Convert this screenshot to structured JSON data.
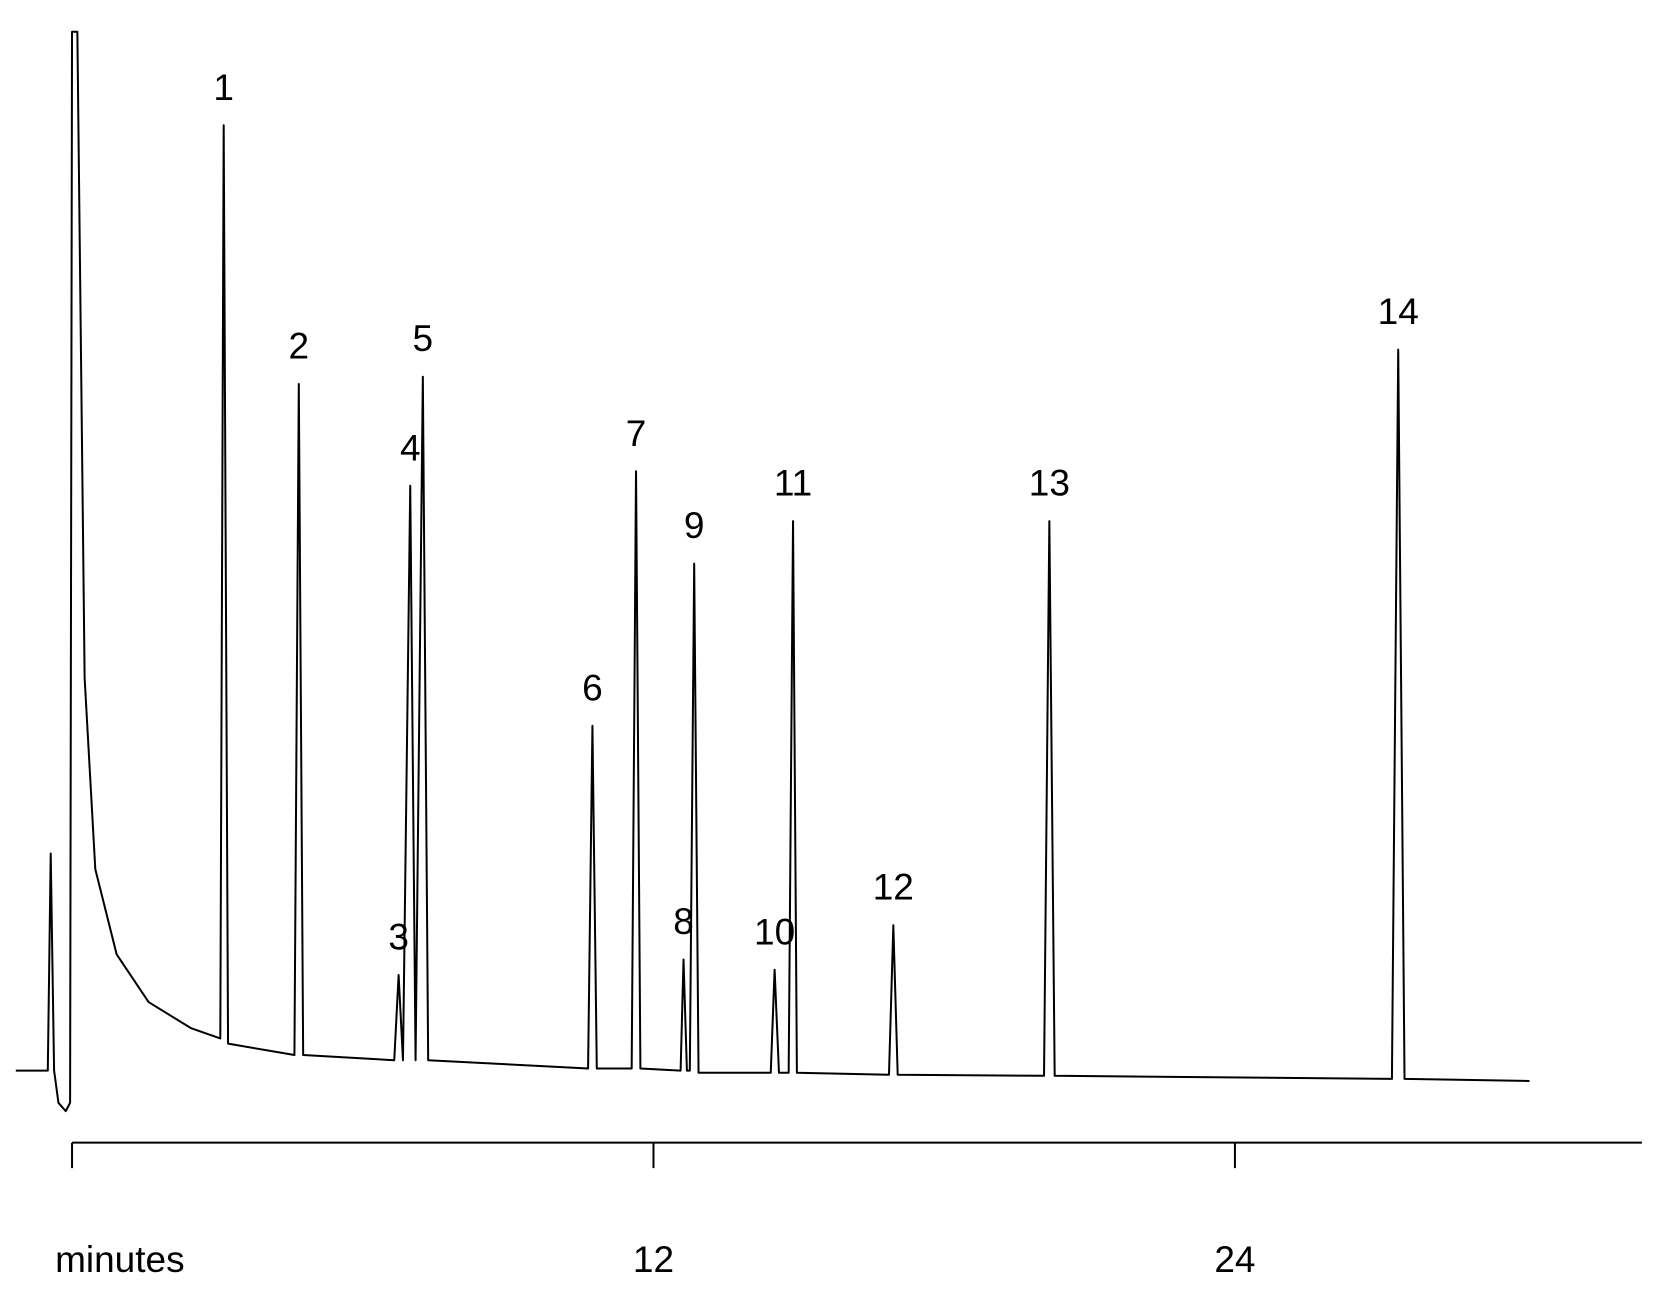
{
  "chart_data": {
    "type": "line",
    "xlim": [
      -1.2,
      32.4
    ],
    "ylim": [
      -4.1,
      100
    ],
    "xticks": [
      {
        "value": 0,
        "label": "minutes"
      },
      12,
      24
    ],
    "series": [
      {
        "color": "#000000",
        "x": [
          -1.16,
          -0.5,
          -0.44,
          -0.37,
          -0.28,
          -0.13,
          -0.04,
          0,
          0.11,
          0.26,
          0.48,
          0.92,
          1.58,
          2.45,
          3.06,
          3.13,
          3.22,
          4.59,
          4.68,
          4.77,
          6.65,
          6.74,
          6.83,
          6.98,
          7.09,
          7.24,
          7.35,
          10.65,
          10.74,
          10.83,
          11.55,
          11.64,
          11.73,
          12.56,
          12.62,
          12.69,
          12.75,
          12.84,
          12.93,
          14.42,
          14.5,
          14.59,
          14.79,
          14.88,
          14.96,
          16.86,
          16.95,
          17.04,
          20.06,
          20.17,
          20.28,
          27.24,
          27.37,
          27.5,
          30.08
        ],
        "values": [
          0,
          0,
          20.9,
          0,
          -3.1,
          -3.9,
          -3.1,
          100,
          100,
          37.8,
          19.4,
          11.2,
          6.6,
          4.1,
          3.1,
          91.0,
          2.6,
          1.5,
          66.1,
          1.5,
          1.0,
          9.2,
          1.0,
          56.3,
          1.0,
          66.8,
          1.0,
          0.2,
          33.2,
          0.2,
          0.2,
          57.7,
          0.2,
          0,
          10.7,
          0,
          0,
          48.8,
          -0.2,
          -0.2,
          9.7,
          -0.2,
          -0.2,
          52.9,
          -0.2,
          -0.4,
          14.0,
          -0.4,
          -0.5,
          52.9,
          -0.5,
          -0.8,
          69.4,
          -0.8,
          -1.0
        ]
      }
    ],
    "annotations": [
      {
        "text": "1",
        "x": 3.13,
        "y": 91.0
      },
      {
        "text": "2",
        "x": 4.68,
        "y": 66.1
      },
      {
        "text": "3",
        "x": 6.74,
        "y": 9.2
      },
      {
        "text": "4",
        "x": 6.98,
        "y": 56.3
      },
      {
        "text": "5",
        "x": 7.24,
        "y": 66.8
      },
      {
        "text": "6",
        "x": 10.74,
        "y": 33.2
      },
      {
        "text": "7",
        "x": 11.64,
        "y": 57.7
      },
      {
        "text": "8",
        "x": 12.62,
        "y": 10.7
      },
      {
        "text": "9",
        "x": 12.84,
        "y": 48.8
      },
      {
        "text": "10",
        "x": 14.5,
        "y": 9.7
      },
      {
        "text": "11",
        "x": 14.88,
        "y": 52.9
      },
      {
        "text": "12",
        "x": 16.95,
        "y": 14.0
      },
      {
        "text": "13",
        "x": 20.17,
        "y": 52.9
      },
      {
        "text": "14",
        "x": 27.37,
        "y": 69.4
      }
    ]
  }
}
